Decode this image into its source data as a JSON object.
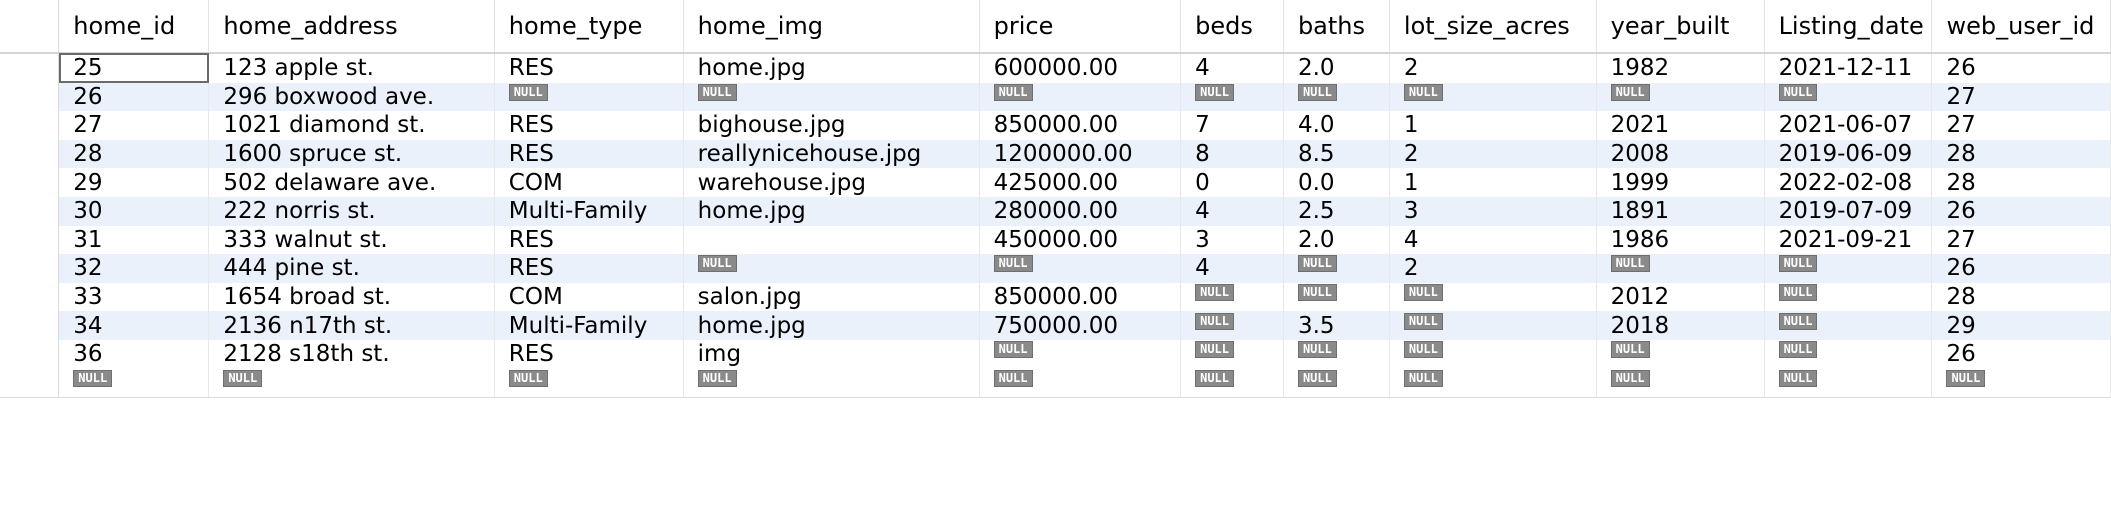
{
  "result_grid": {
    "null_label": "NULL",
    "columns": [
      "home_id",
      "home_address",
      "home_type",
      "home_img",
      "price",
      "beds",
      "baths",
      "lot_size_acres",
      "year_built",
      "Listing_date",
      "web_user_id"
    ],
    "rows": [
      [
        "25",
        "123 apple st.",
        "RES",
        "home.jpg",
        "600000.00",
        "4",
        "2.0",
        "2",
        "1982",
        "2021-12-11",
        "26"
      ],
      [
        "26",
        "296 boxwood ave.",
        null,
        null,
        null,
        null,
        null,
        null,
        null,
        null,
        "27"
      ],
      [
        "27",
        "1021 diamond st.",
        "RES",
        "bighouse.jpg",
        "850000.00",
        "7",
        "4.0",
        "1",
        "2021",
        "2021-06-07",
        "27"
      ],
      [
        "28",
        "1600 spruce st.",
        "RES",
        "reallynicehouse.jpg",
        "1200000.00",
        "8",
        "8.5",
        "2",
        "2008",
        "2019-06-09",
        "28"
      ],
      [
        "29",
        "502 delaware ave.",
        "COM",
        "warehouse.jpg",
        "425000.00",
        "0",
        "0.0",
        "1",
        "1999",
        "2022-02-08",
        "28"
      ],
      [
        "30",
        "222 norris st.",
        "Multi-Family",
        "home.jpg",
        "280000.00",
        "4",
        "2.5",
        "3",
        "1891",
        "2019-07-09",
        "26"
      ],
      [
        "31",
        "333 walnut st.",
        "RES",
        "",
        "450000.00",
        "3",
        "2.0",
        "4",
        "1986",
        "2021-09-21",
        "27"
      ],
      [
        "32",
        "444 pine st.",
        "RES",
        null,
        null,
        "4",
        null,
        "2",
        null,
        null,
        "26"
      ],
      [
        "33",
        "1654 broad st.",
        "COM",
        "salon.jpg",
        "850000.00",
        null,
        null,
        null,
        "2012",
        null,
        "28"
      ],
      [
        "34",
        "2136 n17th st.",
        "Multi-Family",
        "home.jpg",
        "750000.00",
        null,
        "3.5",
        null,
        "2018",
        null,
        "29"
      ],
      [
        "36",
        "2128 s18th st.",
        "RES",
        "img",
        null,
        null,
        null,
        null,
        null,
        null,
        "26"
      ],
      [
        null,
        null,
        null,
        null,
        null,
        null,
        null,
        null,
        null,
        null,
        null
      ]
    ]
  }
}
